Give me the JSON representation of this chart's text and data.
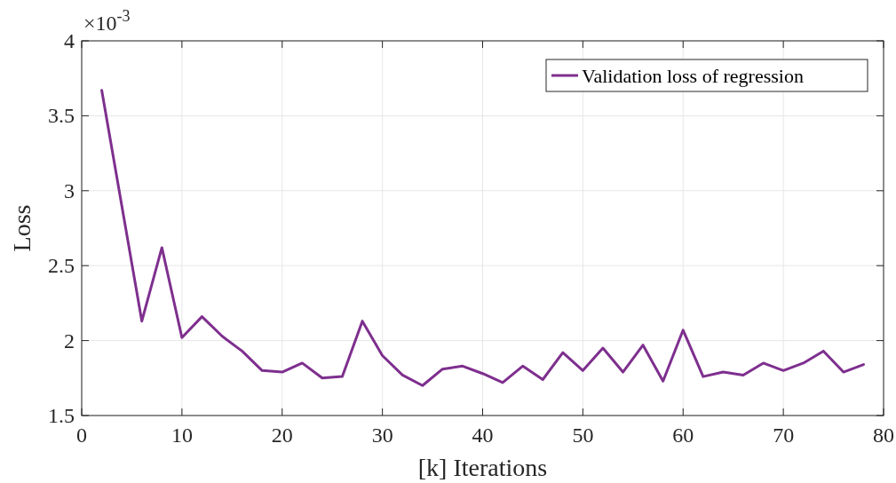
{
  "chart_data": {
    "type": "line",
    "xlabel": "[k] Iterations",
    "ylabel": "Loss",
    "annotations": [
      "×10$^{-3}$"
    ],
    "x": [
      2,
      6,
      8,
      10,
      12,
      14,
      16,
      18,
      20,
      22,
      24,
      26,
      28,
      30,
      32,
      34,
      36,
      38,
      40,
      42,
      44,
      46,
      48,
      50,
      52,
      54,
      56,
      58,
      60,
      62,
      64,
      66,
      68,
      70,
      72,
      74,
      76,
      78
    ],
    "series": [
      {
        "name": "Validation loss of regression",
        "color": "#7e2f8e",
        "values": [
          3.67,
          2.13,
          2.62,
          2.02,
          2.16,
          2.03,
          1.93,
          1.8,
          1.79,
          1.85,
          1.75,
          1.76,
          2.13,
          1.9,
          1.77,
          1.7,
          1.81,
          1.83,
          1.78,
          1.72,
          1.83,
          1.74,
          1.92,
          1.8,
          1.95,
          1.79,
          1.97,
          1.73,
          2.07,
          1.76,
          1.79,
          1.77,
          1.85,
          1.8,
          1.85,
          1.93,
          1.79,
          1.84
        ]
      }
    ],
    "xlim": [
      0,
      80
    ],
    "xticks": [
      0,
      10,
      20,
      30,
      40,
      50,
      60,
      70,
      80
    ],
    "ylim": [
      1.5,
      4
    ],
    "yticks": [
      1.5,
      2,
      2.5,
      3,
      3.5,
      4
    ],
    "grid": true,
    "legend": "top right",
    "marker": "none",
    "line_style": "solid"
  }
}
